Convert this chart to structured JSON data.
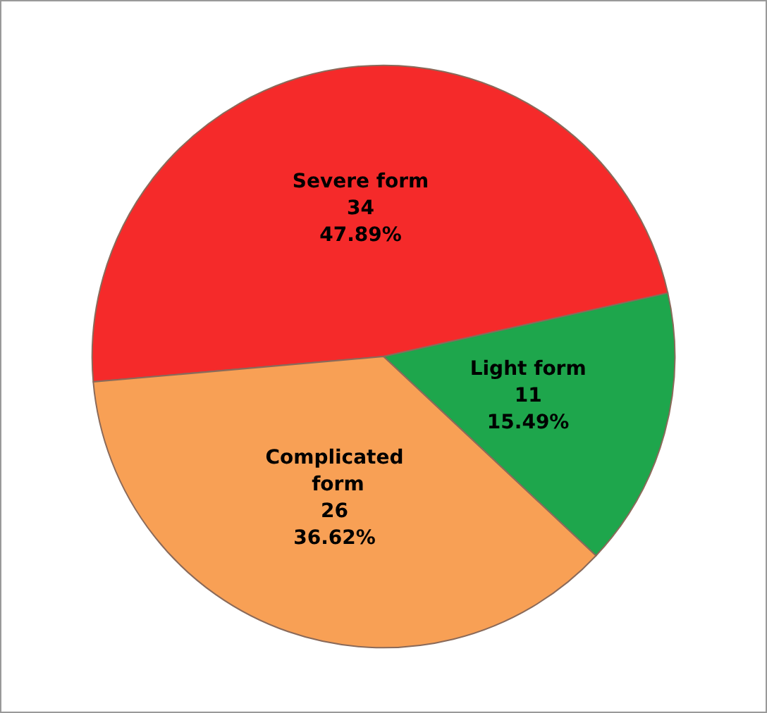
{
  "chart_data": {
    "type": "pie",
    "categories": [
      "Severe form",
      "Light form",
      "Complicated form"
    ],
    "values": [
      47.89,
      15.49,
      36.62
    ],
    "colors": [
      "#f52a2a",
      "#1ea64c",
      "#f8a055"
    ],
    "value_labels": [
      "34\n47.89%",
      "11\n15.49%",
      "26\n36.62%"
    ]
  }
}
